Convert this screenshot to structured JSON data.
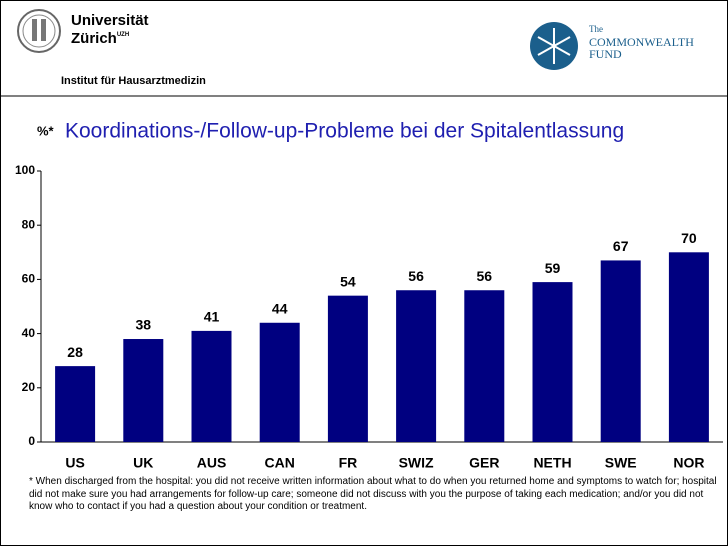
{
  "header": {
    "university": "Universität",
    "city": "Zürich",
    "city_superscript": "UZH",
    "institute": "Institut für Hausarztmedizin",
    "fund_the": "The",
    "fund_line_1": "COMMONWEALTH",
    "fund_line_2": "FUND"
  },
  "chart_data": {
    "type": "bar",
    "title": "Koordinations-/Follow-up-Probleme bei der Spitalentlassung",
    "ylabel": "%*",
    "categories": [
      "US",
      "UK",
      "AUS",
      "CAN",
      "FR",
      "SWIZ",
      "GER",
      "NETH",
      "SWE",
      "NOR"
    ],
    "values": [
      28,
      38,
      41,
      44,
      54,
      56,
      56,
      59,
      67,
      70
    ],
    "color": "#000080",
    "ylim": [
      0,
      100
    ],
    "yticks": [
      0,
      20,
      40,
      60,
      80,
      100
    ],
    "grid": false,
    "note": "* When discharged from the hospital: you did not receive written information about what to do when you returned home and symptoms to watch for; hospital did not make sure you had arrangements for follow-up care; someone did not discuss with you the purpose of taking each medication; and/or you did not know who to contact if you had a question about your condition or treatment."
  }
}
